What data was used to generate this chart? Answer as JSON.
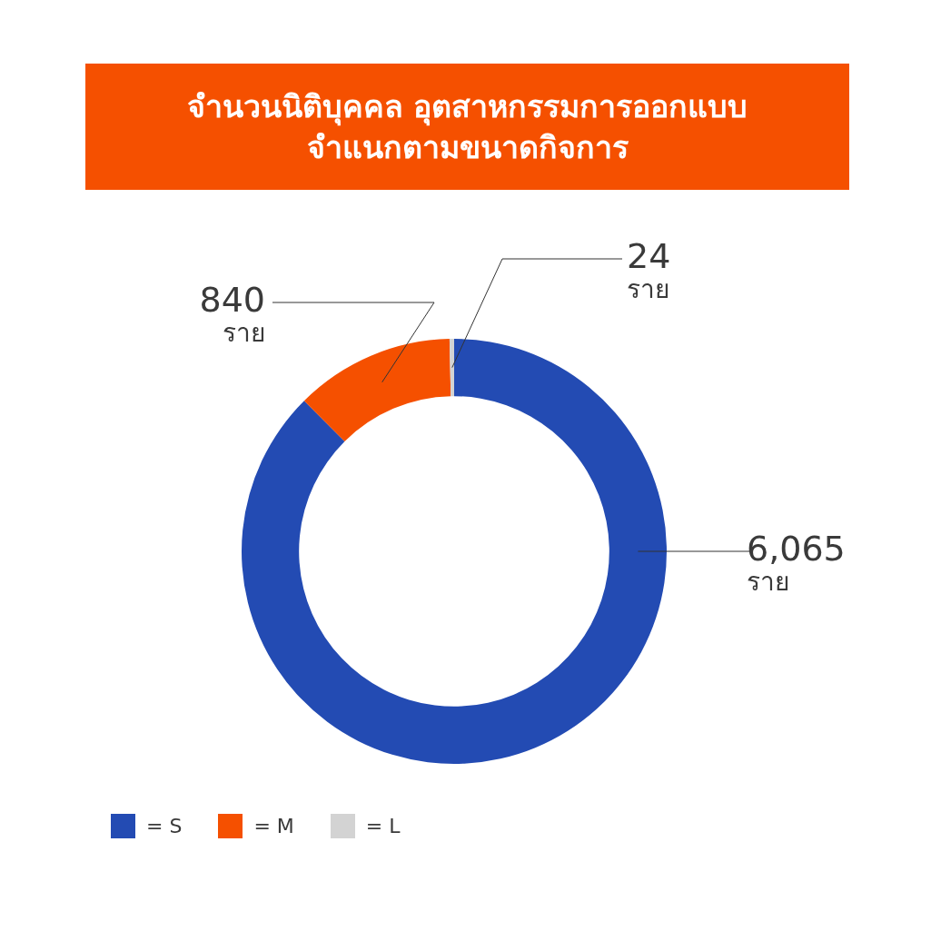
{
  "chart_data": {
    "type": "donut",
    "title": "จำนวนนิติบุคคล อุตสาหกรรมการออกแบบ\nจำแนกตามขนาดกิจการ",
    "categories": [
      "= S",
      "= M",
      "= L"
    ],
    "values": [
      6065,
      840,
      24
    ],
    "colors": [
      "#234bb3",
      "#f55000",
      "#d3d3d3"
    ],
    "value_labels": [
      "6,065 ราย",
      "840 ราย",
      "24 ราย"
    ],
    "legend": "bottom left"
  }
}
